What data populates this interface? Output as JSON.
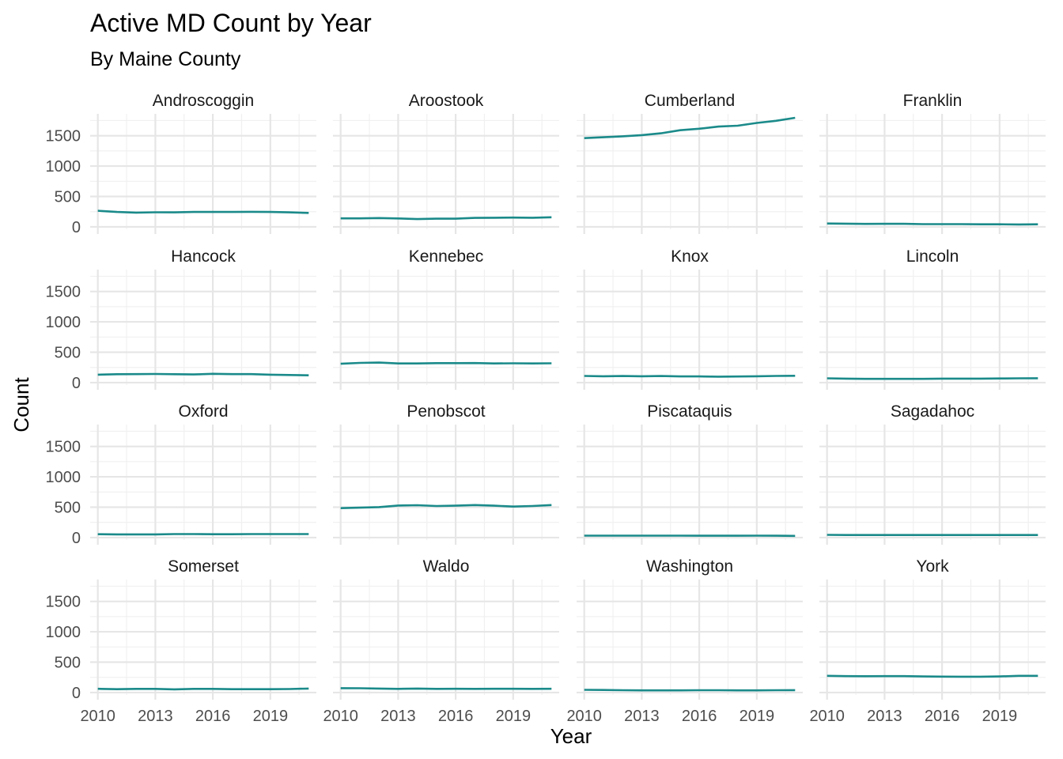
{
  "chart_data": {
    "type": "line",
    "title": "Active MD Count by Year",
    "subtitle": "By Maine County",
    "xlabel": "Year",
    "ylabel": "Count",
    "x": [
      2010,
      2011,
      2012,
      2013,
      2014,
      2015,
      2016,
      2017,
      2018,
      2019,
      2020,
      2021
    ],
    "xticks": [
      2010,
      2013,
      2016,
      2019
    ],
    "xlim": [
      2009.6,
      2021.4
    ],
    "yticks": [
      0,
      500,
      1000,
      1500
    ],
    "ylim": [
      -40,
      1860
    ],
    "grid": true,
    "line_color": "#1b8a8a",
    "panels": [
      {
        "name": "Androscoggin",
        "values": [
          265,
          245,
          235,
          240,
          238,
          245,
          245,
          245,
          248,
          245,
          238,
          230
        ]
      },
      {
        "name": "Aroostook",
        "values": [
          140,
          140,
          145,
          138,
          128,
          135,
          135,
          148,
          150,
          152,
          150,
          158
        ]
      },
      {
        "name": "Cumberland",
        "values": [
          1460,
          1475,
          1490,
          1510,
          1540,
          1590,
          1615,
          1650,
          1665,
          1710,
          1745,
          1795
        ]
      },
      {
        "name": "Franklin",
        "values": [
          55,
          52,
          48,
          50,
          50,
          45,
          45,
          45,
          42,
          42,
          40,
          42
        ]
      },
      {
        "name": "Hancock",
        "values": [
          130,
          138,
          140,
          142,
          138,
          135,
          145,
          140,
          140,
          130,
          125,
          120
        ]
      },
      {
        "name": "Kennebec",
        "values": [
          310,
          325,
          330,
          315,
          315,
          320,
          320,
          322,
          315,
          318,
          315,
          318
        ]
      },
      {
        "name": "Knox",
        "values": [
          110,
          105,
          108,
          105,
          108,
          102,
          102,
          98,
          100,
          105,
          110,
          112
        ]
      },
      {
        "name": "Lincoln",
        "values": [
          70,
          65,
          62,
          62,
          62,
          62,
          65,
          65,
          65,
          68,
          70,
          72
        ]
      },
      {
        "name": "Oxford",
        "values": [
          55,
          52,
          52,
          52,
          58,
          58,
          55,
          55,
          58,
          58,
          58,
          58
        ]
      },
      {
        "name": "Penobscot",
        "values": [
          485,
          492,
          502,
          528,
          532,
          520,
          525,
          535,
          525,
          510,
          520,
          535
        ]
      },
      {
        "name": "Piscataquis",
        "values": [
          32,
          32,
          32,
          32,
          32,
          32,
          30,
          30,
          30,
          32,
          30,
          28
        ]
      },
      {
        "name": "Sagadahoc",
        "values": [
          45,
          42,
          42,
          42,
          42,
          42,
          42,
          42,
          42,
          42,
          42,
          42
        ]
      },
      {
        "name": "Somerset",
        "values": [
          62,
          55,
          60,
          60,
          52,
          60,
          60,
          55,
          55,
          55,
          58,
          65
        ]
      },
      {
        "name": "Waldo",
        "values": [
          72,
          70,
          65,
          60,
          65,
          60,
          62,
          60,
          62,
          62,
          60,
          62
        ]
      },
      {
        "name": "Washington",
        "values": [
          45,
          42,
          38,
          35,
          35,
          35,
          38,
          38,
          35,
          35,
          38,
          40
        ]
      },
      {
        "name": "York",
        "values": [
          275,
          270,
          268,
          270,
          270,
          265,
          262,
          260,
          260,
          265,
          275,
          275
        ]
      }
    ]
  }
}
